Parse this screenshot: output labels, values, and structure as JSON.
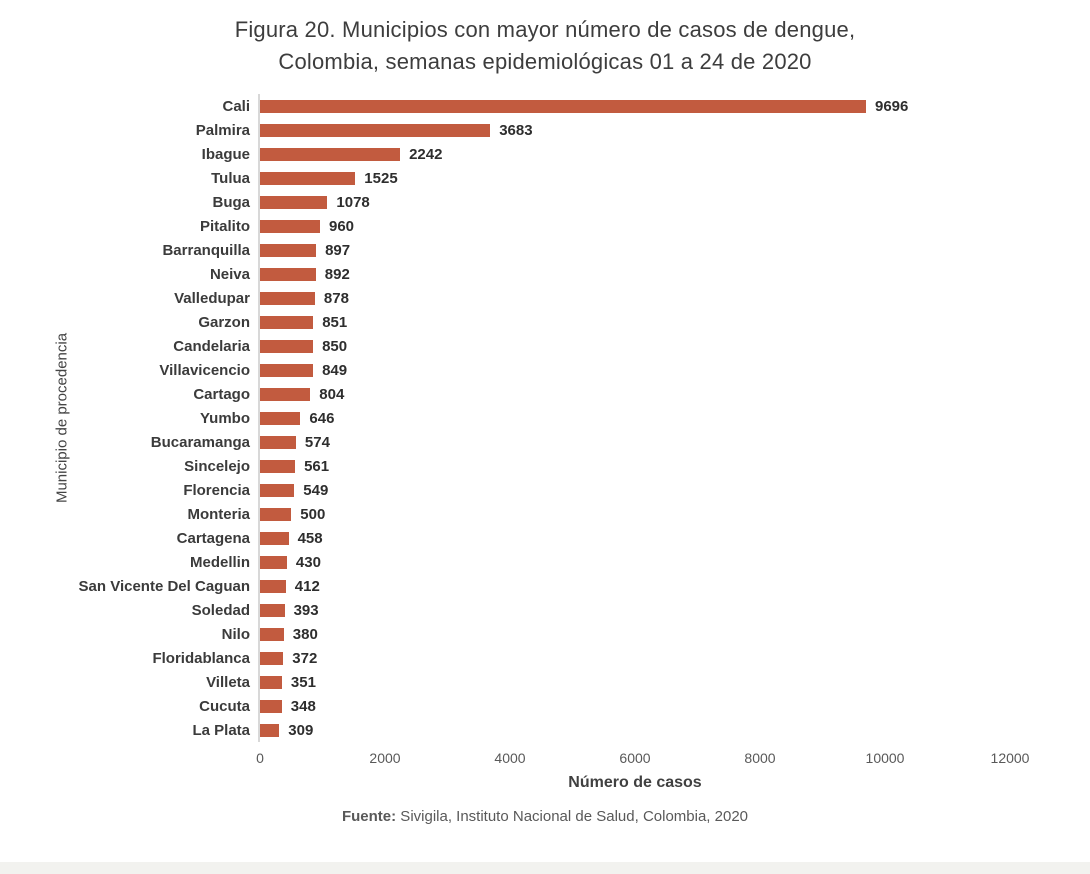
{
  "title": {
    "line1": "Figura 20. Municipios con mayor número de casos de dengue,",
    "line2": "Colombia, semanas epidemiológicas 01 a 24 de 2020"
  },
  "chart_data": {
    "type": "bar",
    "orientation": "horizontal",
    "title": "Figura 20. Municipios con mayor número de casos de dengue, Colombia, semanas epidemiológicas 01 a 24 de 2020",
    "categories": [
      "Cali",
      "Palmira",
      "Ibague",
      "Tulua",
      "Buga",
      "Pitalito",
      "Barranquilla",
      "Neiva",
      "Valledupar",
      "Garzon",
      "Candelaria",
      "Villavicencio",
      "Cartago",
      "Yumbo",
      "Bucaramanga",
      "Sincelejo",
      "Florencia",
      "Monteria",
      "Cartagena",
      "Medellin",
      "San Vicente Del Caguan",
      "Soledad",
      "Nilo",
      "Floridablanca",
      "Villeta",
      "Cucuta",
      "La Plata"
    ],
    "values": [
      9696,
      3683,
      2242,
      1525,
      1078,
      960,
      897,
      892,
      878,
      851,
      850,
      849,
      804,
      646,
      574,
      561,
      549,
      500,
      458,
      430,
      412,
      393,
      380,
      372,
      351,
      348,
      309
    ],
    "xlabel": "Número de casos",
    "ylabel": "Municipio de procedencia",
    "xlim": [
      0,
      12000
    ],
    "xticks": [
      0,
      2000,
      4000,
      6000,
      8000,
      10000,
      12000
    ],
    "bar_color": "#c25b3f",
    "axis_line_color": "#d8d8d8",
    "grid": false,
    "data_labels": true,
    "legend": "none"
  },
  "footer": {
    "bold": "Fuente:",
    "rest": " Sivigila, Instituto Nacional de Salud, Colombia, 2020"
  }
}
